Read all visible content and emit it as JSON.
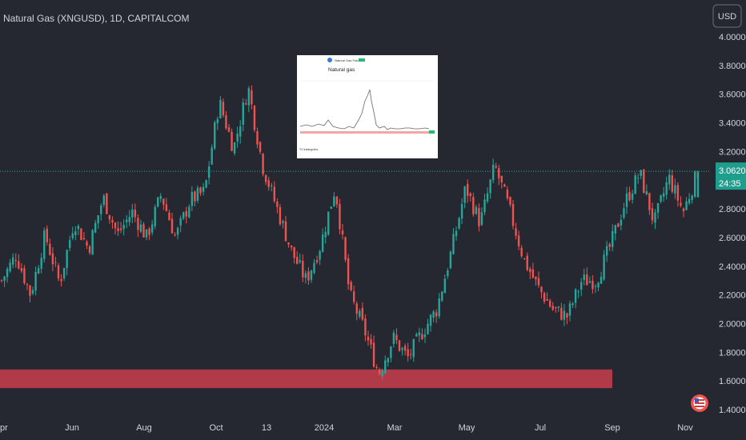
{
  "header": {
    "title": "Natural Gas (XNGUSD), 1D, CAPITALCOM",
    "currency_button": "USD"
  },
  "price_badge": {
    "price": "3.0620",
    "countdown": "24:35"
  },
  "colors": {
    "background": "#262831",
    "up": "#26a69a",
    "down": "#ef5350",
    "zone": "#b03a48",
    "axis_text": "#d1d4dc",
    "badge": "#1f9e8e"
  },
  "chart_data": {
    "type": "candlestick",
    "title": "Natural Gas (XNGUSD), 1D, CAPITALCOM",
    "ylim": [
      1.4,
      4.08
    ],
    "x_ticks": [
      "pr",
      "Jun",
      "Aug",
      "Oct",
      "13",
      "2024",
      "Mar",
      "May",
      "Jul",
      "Sep",
      "Nov"
    ],
    "y_ticks": [
      "4.0000",
      "3.8000",
      "3.6000",
      "3.4000",
      "3.2000",
      "3.0000",
      "2.8000",
      "2.6000",
      "2.4000",
      "2.2000",
      "2.0000",
      "1.8000",
      "1.6000",
      "1.4000"
    ],
    "y_tick_values": [
      4.0,
      3.8,
      3.6,
      3.4,
      3.2,
      3.0,
      2.8,
      2.6,
      2.4,
      2.2,
      2.0,
      1.8,
      1.6,
      1.4
    ],
    "last_price": 3.062,
    "support_zone": [
      1.55,
      1.68
    ],
    "close_path": [
      {
        "x": "pr",
        "y": 2.3
      },
      {
        "x": "",
        "y": 2.48
      },
      {
        "x": "",
        "y": 2.2
      },
      {
        "x": "",
        "y": 2.62
      },
      {
        "x": "",
        "y": 2.28
      },
      {
        "x": "Jun",
        "y": 2.72
      },
      {
        "x": "",
        "y": 2.52
      },
      {
        "x": "",
        "y": 2.88
      },
      {
        "x": "",
        "y": 2.62
      },
      {
        "x": "",
        "y": 2.78
      },
      {
        "x": "Aug",
        "y": 2.6
      },
      {
        "x": "",
        "y": 2.9
      },
      {
        "x": "",
        "y": 2.6
      },
      {
        "x": "",
        "y": 2.86
      },
      {
        "x": "",
        "y": 2.92
      },
      {
        "x": "Oct",
        "y": 3.55
      },
      {
        "x": "",
        "y": 3.22
      },
      {
        "x": "",
        "y": 3.65
      },
      {
        "x": "13",
        "y": 3.1
      },
      {
        "x": "",
        "y": 2.8
      },
      {
        "x": "",
        "y": 2.5
      },
      {
        "x": "",
        "y": 2.3
      },
      {
        "x": "",
        "y": 2.55
      },
      {
        "x": "2024",
        "y": 2.95
      },
      {
        "x": "",
        "y": 2.2
      },
      {
        "x": "",
        "y": 1.96
      },
      {
        "x": "",
        "y": 1.65
      },
      {
        "x": "Mar",
        "y": 1.9
      },
      {
        "x": "",
        "y": 1.76
      },
      {
        "x": "",
        "y": 1.94
      },
      {
        "x": "",
        "y": 2.1
      },
      {
        "x": "May",
        "y": 2.5
      },
      {
        "x": "",
        "y": 2.95
      },
      {
        "x": "",
        "y": 2.7
      },
      {
        "x": "",
        "y": 3.1
      },
      {
        "x": "",
        "y": 2.8
      },
      {
        "x": "",
        "y": 2.45
      },
      {
        "x": "Jul",
        "y": 2.25
      },
      {
        "x": "",
        "y": 2.1
      },
      {
        "x": "",
        "y": 2.05
      },
      {
        "x": "",
        "y": 2.3
      },
      {
        "x": "Sep",
        "y": 2.3
      },
      {
        "x": "",
        "y": 2.55
      },
      {
        "x": "",
        "y": 2.85
      },
      {
        "x": "",
        "y": 3.05
      },
      {
        "x": "",
        "y": 2.7
      },
      {
        "x": "",
        "y": 3.02
      },
      {
        "x": "Nov",
        "y": 2.78
      },
      {
        "x": "",
        "y": 3.06
      }
    ]
  },
  "inset": {
    "header_text": "Natural Gas Futures",
    "title": "Natural gas",
    "footer": "TV tradingview"
  }
}
